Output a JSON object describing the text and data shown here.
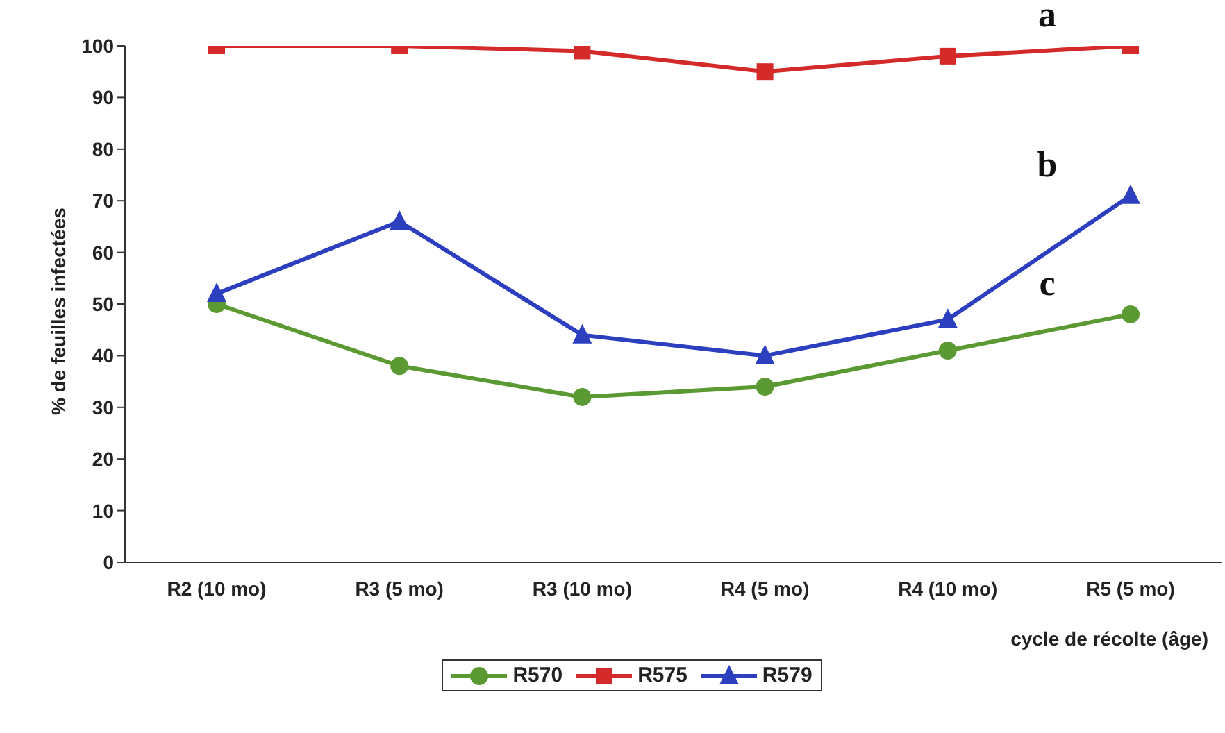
{
  "chart_data": {
    "type": "line",
    "xlabel": "cycle de récolte (âge)",
    "ylabel": "% de feuilles infectées",
    "categories": [
      "R2 (10 mo)",
      "R3 (5 mo)",
      "R3 (10 mo)",
      "R4 (5 mo)",
      "R4 (10 mo)",
      "R5 (5 mo)"
    ],
    "series": [
      {
        "name": "R570",
        "color": "#5b9a32",
        "marker": "circle",
        "values": [
          50,
          38,
          32,
          34,
          41,
          48
        ]
      },
      {
        "name": "R575",
        "color": "#d42a2a",
        "marker": "square",
        "values": [
          100,
          100,
          99,
          95,
          98,
          100
        ]
      },
      {
        "name": "R579",
        "color": "#2b3fbf",
        "marker": "triangle",
        "values": [
          52,
          66,
          44,
          40,
          47,
          71
        ]
      }
    ],
    "annotations": [
      "a",
      "b",
      "c"
    ],
    "ylim": [
      0,
      100
    ],
    "yticks": [
      0,
      10,
      20,
      30,
      40,
      50,
      60,
      70,
      80,
      90,
      100
    ],
    "grid": false,
    "legend": "bottom"
  }
}
